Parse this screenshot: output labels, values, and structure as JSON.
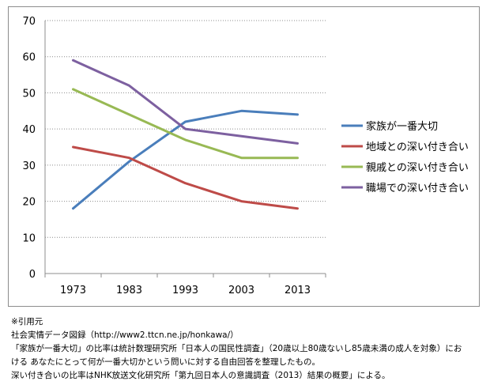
{
  "chart_data": {
    "type": "line",
    "title": "",
    "xlabel": "",
    "ylabel": "",
    "categories": [
      "1973",
      "1983",
      "1993",
      "2003",
      "2013"
    ],
    "ylim": [
      0,
      70
    ],
    "yticks": [
      0,
      10,
      20,
      30,
      40,
      50,
      60,
      70
    ],
    "grid": "horizontal dotted",
    "legend_position": "right",
    "series": [
      {
        "name": "家族が一番大切",
        "color": "#4a7ebb",
        "values": [
          18,
          31,
          42,
          45,
          44
        ]
      },
      {
        "name": "地域との深い付き合い",
        "color": "#be4b48",
        "values": [
          35,
          32,
          25,
          20,
          18
        ]
      },
      {
        "name": "親戚との深い付き合い",
        "color": "#98b954",
        "values": [
          51,
          44,
          37,
          32,
          32
        ]
      },
      {
        "name": "職場での深い付き合い",
        "color": "#7d60a0",
        "values": [
          59,
          52,
          40,
          38,
          36
        ]
      }
    ]
  },
  "notes": {
    "line1": "※引用元",
    "line2": "社会実情データ図録（http://www2.ttcn.ne.jp/honkawa/）",
    "line3": "「家族が一番大切」の比率は統計数理研究所「日本人の国民性調査」（20歳以上80歳ないし85歳未満の成人を対象）にお",
    "line4": "ける あなたにとって何が一番大切かという問いに対する自由回答を整理したもの。",
    "line5": "深い付き合いの比率はNHK放送文化研究所「第九回日本人の意識調査（2013）結果の概要」による。"
  }
}
